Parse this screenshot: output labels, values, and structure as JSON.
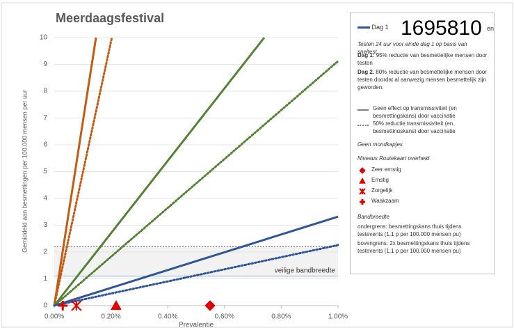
{
  "chart_data": {
    "type": "line",
    "title": "Meerdaagsfestival",
    "y_label": "Gemiddeld aan besmettingen per 100.000 mensen per uur",
    "x_label": "Prevalentie",
    "xlim": [
      0,
      1
    ],
    "ylim": [
      0,
      10
    ],
    "xticks": [
      {
        "value": 0,
        "label": "0.00%"
      },
      {
        "value": 0.2,
        "label": "0.20%"
      },
      {
        "value": 0.4,
        "label": "0.40%"
      },
      {
        "value": 0.6,
        "label": "0.60%"
      },
      {
        "value": 0.8,
        "label": "0.80%"
      },
      {
        "value": 1,
        "label": "1.00%"
      }
    ],
    "yticks": [
      0,
      1,
      2,
      3,
      4,
      5,
      6,
      7,
      8,
      9,
      10
    ],
    "grid": true,
    "series": [
      {
        "color": "#c55a11",
        "dashed": false,
        "x": [
          0,
          0.147
        ],
        "values": [
          0,
          10
        ]
      },
      {
        "color": "#c55a11",
        "dashed": true,
        "x": [
          0,
          0.203
        ],
        "values": [
          0,
          10
        ]
      },
      {
        "color": "#548235",
        "dashed": false,
        "x": [
          0,
          0.74
        ],
        "values": [
          0,
          10
        ]
      },
      {
        "color": "#548235",
        "dashed": true,
        "x": [
          0,
          1
        ],
        "values": [
          0,
          9.12
        ]
      },
      {
        "color": "#2f5597",
        "dashed": false,
        "x": [
          0,
          1
        ],
        "values": [
          0,
          3.32
        ]
      },
      {
        "color": "#2f5597",
        "dashed": true,
        "x": [
          0,
          1
        ],
        "values": [
          0,
          2.26
        ]
      }
    ],
    "band": {
      "lower": 1.1,
      "upper": 2.2,
      "label": "veilige bandbreedte"
    },
    "markers": [
      {
        "name": "Zeer ernstig",
        "shape": "diamond",
        "color": "#e00000",
        "x": 0.549,
        "value": 0
      },
      {
        "name": "Ernstig",
        "shape": "triangle",
        "color": "#e00000",
        "x": 0.218,
        "value": 0
      },
      {
        "name": "Zorgelijk",
        "shape": "asterisk",
        "color": "#e00000",
        "x": 0.078,
        "value": 0
      },
      {
        "name": "Waakzaam",
        "shape": "plus",
        "color": "#e00000",
        "x": 0.03,
        "value": 0
      }
    ],
    "legend": {
      "dag1": "Dag 1",
      "overlay": "1695810",
      "tail": "en",
      "testing": "Testen 24 uur voor einde dag 1 op basis van sneltest.",
      "dag1_bold": "Dag 1:",
      "dag1_text": "95% reductie van besmettelijke mensen  door testen",
      "dag2_bold": "Dag 2.",
      "dag2_text": "80% reductie van besmettelijke mensen door testen doordat al aanwezig mensen besmettelijk zijn geworden.",
      "no_effect": "Geen effect op transmissiviteit (en besmettingskans) door vaccinatie",
      "half_effect": "50% reductie transmissiviteit (en besmettingskans) door vaccinatie",
      "masks": "Geen mondkapjes",
      "levels": "Niveaus Routekaart overheid",
      "band_title": "Bandbreedte",
      "lower": "ondergrens: besmettingskans thuis tijdens testevents (1,1 p per 100.000 mensen pu)",
      "upper": "bovengrens: 2x besmettingskans thuis tijdens testevents (1,1 p per 100.000 mensen pu)"
    }
  }
}
